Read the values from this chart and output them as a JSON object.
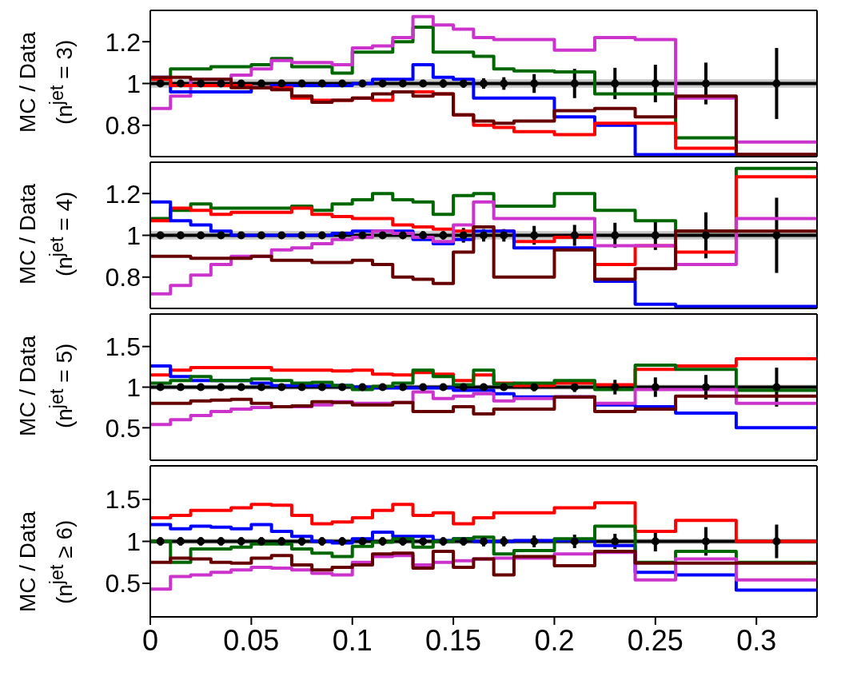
{
  "chart_data": [
    {
      "type": "histogram",
      "ylabel": "MC / Data\n(n$^{jet}$ = 3)",
      "bins": [
        0,
        0.01,
        0.02,
        0.03,
        0.04,
        0.05,
        0.06,
        0.07,
        0.08,
        0.09,
        0.1,
        0.11,
        0.12,
        0.13,
        0.14,
        0.15,
        0.16,
        0.17,
        0.18,
        0.2,
        0.22,
        0.24,
        0.26,
        0.29,
        0.33
      ],
      "xlim": [
        0,
        0.33
      ],
      "xticks": [
        0,
        0.05,
        0.1,
        0.15,
        0.2,
        0.25,
        0.3
      ],
      "ylim": [
        0.65,
        1.35
      ],
      "yticks": [
        0.8,
        1,
        1.2
      ],
      "tick_labels": "y",
      "ref_lines": [
        {
          "axis": "y",
          "value": 1,
          "color": "#000000"
        }
      ],
      "bands": [
        {
          "axis": "y",
          "from": 0.98,
          "to": 1.02,
          "color": "#c8c8c8"
        }
      ],
      "series": [
        {
          "color": "#006600",
          "values": [
            1.02,
            1.07,
            1.07,
            1.08,
            1.08,
            1.09,
            1.12,
            1.08,
            1.08,
            1.05,
            1.15,
            1.15,
            1.2,
            1.27,
            1.15,
            1.15,
            1.13,
            1.07,
            1.06,
            1.055,
            0.95,
            0.95,
            0.74,
            0.66
          ]
        },
        {
          "color": "#cc33cc",
          "values": [
            0.88,
            0.94,
            1.02,
            1.02,
            1.04,
            1.07,
            1.11,
            1.1,
            1.1,
            1.09,
            1.17,
            1.18,
            1.22,
            1.32,
            1.28,
            1.26,
            1.22,
            1.21,
            1.21,
            1.16,
            1.22,
            1.21,
            0.93,
            0.72
          ]
        },
        {
          "color": "#0000ff",
          "values": [
            1.03,
            0.96,
            0.96,
            0.96,
            0.96,
            0.98,
            0.99,
            0.99,
            0.99,
            0.99,
            1.0,
            1.02,
            1.02,
            1.09,
            1.03,
            1.02,
            0.93,
            0.93,
            0.93,
            0.84,
            0.8,
            0.66,
            0.66,
            0.66
          ]
        },
        {
          "color": "#ff0000",
          "values": [
            1.02,
            0.99,
            0.99,
            0.99,
            0.99,
            0.98,
            0.98,
            0.93,
            0.92,
            0.92,
            0.93,
            0.92,
            0.96,
            0.96,
            0.95,
            0.85,
            0.8,
            0.79,
            0.77,
            0.755,
            0.81,
            0.81,
            0.69,
            0.66
          ]
        },
        {
          "color": "#660000",
          "values": [
            1.03,
            1.03,
            1.02,
            1.02,
            0.98,
            0.98,
            0.97,
            0.94,
            0.91,
            0.92,
            0.93,
            0.95,
            0.96,
            0.94,
            0.95,
            0.85,
            0.82,
            0.81,
            0.82,
            0.87,
            0.88,
            0.84,
            0.94,
            0.66
          ]
        },
        {
          "type": "scatter",
          "marker": "circle",
          "color": "#000000",
          "x": [
            0.005,
            0.015,
            0.025,
            0.035,
            0.045,
            0.055,
            0.065,
            0.075,
            0.085,
            0.095,
            0.105,
            0.115,
            0.125,
            0.135,
            0.145,
            0.155,
            0.165,
            0.175,
            0.19,
            0.21,
            0.23,
            0.25,
            0.275,
            0.31
          ],
          "values": [
            1,
            1,
            1,
            1,
            1,
            1,
            1,
            1,
            1,
            1,
            1,
            1,
            1,
            1,
            1,
            1,
            1,
            1,
            1,
            1,
            1,
            1,
            1,
            1
          ],
          "errors": [
            0.01,
            0.01,
            0.01,
            0.01,
            0.01,
            0.01,
            0.01,
            0.01,
            0.01,
            0.01,
            0.01,
            0.01,
            0.01,
            0.015,
            0.02,
            0.02,
            0.025,
            0.03,
            0.045,
            0.07,
            0.075,
            0.09,
            0.1,
            0.17
          ]
        }
      ]
    },
    {
      "type": "histogram",
      "ylabel": "MC / Data\n(n$^{jet}$ = 4)",
      "bins": [
        0,
        0.01,
        0.02,
        0.03,
        0.04,
        0.05,
        0.06,
        0.07,
        0.08,
        0.09,
        0.1,
        0.11,
        0.12,
        0.13,
        0.14,
        0.15,
        0.16,
        0.17,
        0.18,
        0.2,
        0.22,
        0.24,
        0.26,
        0.29,
        0.33
      ],
      "xlim": [
        0,
        0.33
      ],
      "xticks": [
        0,
        0.05,
        0.1,
        0.15,
        0.2,
        0.25,
        0.3
      ],
      "ylim": [
        0.65,
        1.35
      ],
      "yticks": [
        0.8,
        1,
        1.2
      ],
      "tick_labels": "y",
      "ref_lines": [
        {
          "axis": "y",
          "value": 1,
          "color": "#000000"
        }
      ],
      "bands": [
        {
          "axis": "y",
          "from": 0.98,
          "to": 1.02,
          "color": "#c8c8c8"
        }
      ],
      "series": [
        {
          "color": "#006600",
          "values": [
            1.08,
            1.12,
            1.15,
            1.13,
            1.13,
            1.13,
            1.13,
            1.14,
            1.12,
            1.15,
            1.17,
            1.2,
            1.17,
            1.16,
            1.1,
            1.19,
            1.2,
            1.14,
            1.14,
            1.2,
            1.12,
            1.07,
            1.02,
            1.32
          ]
        },
        {
          "color": "#ff0000",
          "values": [
            1.07,
            1.13,
            1.12,
            1.1,
            1.11,
            1.11,
            1.11,
            1.13,
            1.1,
            1.09,
            1.08,
            1.08,
            1.05,
            1.04,
            1.03,
            1.02,
            1.04,
            1.02,
            0.97,
            0.99,
            0.86,
            0.95,
            0.92,
            1.28
          ]
        },
        {
          "color": "#0000ff",
          "values": [
            1.16,
            1.07,
            1.05,
            1.02,
            1.0,
            1.0,
            1.0,
            1.0,
            1.0,
            1.01,
            1.02,
            1.02,
            1.02,
            0.98,
            0.96,
            0.98,
            1.02,
            1.02,
            0.94,
            0.94,
            0.78,
            0.67,
            0.66,
            0.66
          ]
        },
        {
          "color": "#cc33cc",
          "values": [
            0.72,
            0.76,
            0.81,
            0.86,
            0.9,
            0.9,
            0.93,
            0.94,
            0.96,
            0.98,
            0.99,
            1.02,
            1.01,
            0.99,
            0.97,
            1.05,
            1.16,
            1.08,
            1.08,
            1.08,
            0.95,
            0.95,
            0.86,
            1.08
          ]
        },
        {
          "color": "#660000",
          "values": [
            0.9,
            0.9,
            0.89,
            0.89,
            0.89,
            0.9,
            0.88,
            0.88,
            0.87,
            0.87,
            0.88,
            0.86,
            0.8,
            0.79,
            0.77,
            0.92,
            1.04,
            0.8,
            0.8,
            0.93,
            0.79,
            0.84,
            1.02,
            1.02
          ]
        },
        {
          "type": "scatter",
          "marker": "circle",
          "color": "#000000",
          "x": [
            0.005,
            0.015,
            0.025,
            0.035,
            0.045,
            0.055,
            0.065,
            0.075,
            0.085,
            0.095,
            0.105,
            0.115,
            0.125,
            0.135,
            0.145,
            0.155,
            0.165,
            0.175,
            0.19,
            0.21,
            0.23,
            0.25,
            0.275,
            0.31
          ],
          "values": [
            1,
            1,
            1,
            1,
            1,
            1,
            1,
            1,
            1,
            1,
            1,
            1,
            1,
            1,
            1,
            1,
            1,
            1,
            1,
            1,
            1,
            1,
            1,
            1
          ],
          "errors": [
            0.01,
            0.01,
            0.01,
            0.01,
            0.01,
            0.01,
            0.01,
            0.01,
            0.01,
            0.01,
            0.01,
            0.01,
            0.01,
            0.02,
            0.02,
            0.035,
            0.03,
            0.03,
            0.045,
            0.05,
            0.06,
            0.07,
            0.11,
            0.18
          ]
        }
      ]
    },
    {
      "type": "histogram",
      "ylabel": "MC / Data\n(n$^{jet}$ = 5)",
      "bins": [
        0,
        0.01,
        0.02,
        0.03,
        0.04,
        0.05,
        0.06,
        0.07,
        0.08,
        0.09,
        0.1,
        0.11,
        0.12,
        0.13,
        0.14,
        0.15,
        0.16,
        0.17,
        0.18,
        0.2,
        0.22,
        0.24,
        0.26,
        0.29,
        0.33
      ],
      "xlim": [
        0,
        0.33
      ],
      "xticks": [
        0,
        0.05,
        0.1,
        0.15,
        0.2,
        0.25,
        0.3
      ],
      "ylim": [
        0.1,
        1.9
      ],
      "yticks": [
        0.5,
        1,
        1.5
      ],
      "tick_labels": "y",
      "ref_lines": [
        {
          "axis": "y",
          "value": 1,
          "color": "#000000"
        }
      ],
      "bands": [
        {
          "axis": "y",
          "from": 0.97,
          "to": 1.03,
          "color": "#c8c8c8"
        }
      ],
      "series": [
        {
          "color": "#ff0000",
          "values": [
            1.15,
            1.21,
            1.24,
            1.24,
            1.24,
            1.24,
            1.21,
            1.21,
            1.21,
            1.2,
            1.21,
            1.16,
            1.15,
            1.18,
            1.16,
            1.08,
            1.15,
            1.05,
            1.02,
            1.05,
            1.03,
            1.22,
            1.26,
            1.35
          ]
        },
        {
          "color": "#0000ff",
          "values": [
            1.26,
            1.13,
            1.08,
            1.08,
            1.08,
            1.05,
            1.02,
            1.02,
            1.02,
            1.02,
            1.0,
            0.99,
            0.99,
            0.99,
            0.99,
            0.96,
            0.96,
            0.92,
            0.88,
            0.88,
            0.78,
            0.76,
            0.68,
            0.5
          ]
        },
        {
          "color": "#006600",
          "values": [
            1.05,
            1.08,
            1.13,
            1.08,
            1.08,
            1.1,
            1.08,
            1.05,
            1.06,
            1.02,
            0.97,
            1.01,
            1.05,
            1.21,
            1.13,
            1.03,
            1.21,
            1.04,
            1.05,
            1.08,
            0.97,
            1.27,
            1.22,
            0.96
          ]
        },
        {
          "color": "#cc33cc",
          "values": [
            0.54,
            0.6,
            0.65,
            0.7,
            0.73,
            0.75,
            0.76,
            0.76,
            0.78,
            0.82,
            0.8,
            0.8,
            0.81,
            0.94,
            0.86,
            0.89,
            0.92,
            0.83,
            0.86,
            0.88,
            0.8,
            0.97,
            0.97,
            0.8
          ]
        },
        {
          "color": "#660000",
          "values": [
            0.8,
            0.8,
            0.83,
            0.84,
            0.85,
            0.8,
            0.76,
            0.77,
            0.82,
            0.81,
            0.78,
            0.78,
            0.81,
            0.7,
            0.7,
            0.76,
            0.67,
            0.73,
            0.73,
            0.88,
            0.7,
            0.73,
            0.89,
            0.89
          ]
        },
        {
          "type": "scatter",
          "marker": "circle",
          "color": "#000000",
          "x": [
            0.005,
            0.015,
            0.025,
            0.035,
            0.045,
            0.055,
            0.065,
            0.075,
            0.085,
            0.095,
            0.105,
            0.115,
            0.125,
            0.135,
            0.145,
            0.155,
            0.165,
            0.175,
            0.19,
            0.21,
            0.23,
            0.25,
            0.275,
            0.31
          ],
          "values": [
            1,
            1,
            1,
            1,
            1,
            1,
            1,
            1,
            1,
            1,
            1,
            1,
            1,
            1,
            1,
            1,
            1,
            1,
            1,
            1,
            1,
            1,
            1,
            1
          ],
          "errors": [
            0.02,
            0.02,
            0.02,
            0.02,
            0.02,
            0.02,
            0.02,
            0.02,
            0.02,
            0.02,
            0.02,
            0.02,
            0.02,
            0.02,
            0.03,
            0.03,
            0.04,
            0.04,
            0.05,
            0.06,
            0.09,
            0.12,
            0.15,
            0.24
          ]
        }
      ]
    },
    {
      "type": "histogram",
      "ylabel": "MC / Data\n(n$^{jet}$ ≥ 6)",
      "bins": [
        0,
        0.01,
        0.02,
        0.03,
        0.04,
        0.05,
        0.06,
        0.07,
        0.08,
        0.09,
        0.1,
        0.11,
        0.12,
        0.13,
        0.14,
        0.15,
        0.16,
        0.17,
        0.18,
        0.2,
        0.22,
        0.24,
        0.26,
        0.29,
        0.33
      ],
      "xlim": [
        0,
        0.33
      ],
      "xticks": [
        0,
        0.05,
        0.1,
        0.15,
        0.2,
        0.25,
        0.3
      ],
      "ylim": [
        0.1,
        1.9
      ],
      "yticks": [
        0.5,
        1,
        1.5
      ],
      "ref_lines": [
        {
          "axis": "y",
          "value": 1,
          "color": "#000000"
        }
      ],
      "bands": [
        {
          "axis": "y",
          "from": 0.97,
          "to": 1.03,
          "color": "#c8c8c8"
        }
      ],
      "series": [
        {
          "color": "#ff0000",
          "values": [
            1.28,
            1.31,
            1.37,
            1.37,
            1.4,
            1.44,
            1.43,
            1.31,
            1.21,
            1.23,
            1.28,
            1.37,
            1.44,
            1.31,
            1.34,
            1.21,
            1.28,
            1.34,
            1.34,
            1.4,
            1.46,
            1.12,
            1.25,
            1.0
          ]
        },
        {
          "color": "#0000ff",
          "values": [
            1.2,
            1.15,
            1.18,
            1.17,
            1.15,
            1.2,
            1.12,
            1.06,
            1.0,
            0.98,
            1.03,
            1.11,
            1.06,
            1.06,
            1.01,
            1.03,
            1.0,
            1.0,
            1.01,
            1.01,
            0.95,
            0.63,
            0.6,
            0.42
          ]
        },
        {
          "color": "#006600",
          "values": [
            1.0,
            0.75,
            0.91,
            0.91,
            0.93,
            0.97,
            0.97,
            0.91,
            0.86,
            0.82,
            0.94,
            0.99,
            1.03,
            0.93,
            1.0,
            1.03,
            1.05,
            0.85,
            0.89,
            1.03,
            1.18,
            0.75,
            0.88,
            0.75
          ]
        },
        {
          "color": "#cc33cc",
          "values": [
            0.43,
            0.58,
            0.6,
            0.63,
            0.66,
            0.69,
            0.68,
            0.66,
            0.62,
            0.6,
            0.75,
            0.82,
            0.83,
            0.72,
            0.75,
            0.77,
            0.79,
            0.8,
            0.8,
            0.85,
            0.87,
            0.54,
            0.79,
            0.54
          ]
        },
        {
          "color": "#660000",
          "values": [
            0.75,
            0.8,
            0.79,
            0.75,
            0.74,
            0.8,
            0.83,
            0.72,
            0.66,
            0.69,
            0.72,
            0.85,
            0.86,
            0.68,
            0.88,
            0.69,
            0.79,
            0.6,
            0.82,
            0.71,
            0.88,
            0.74,
            0.74,
            0.74
          ]
        },
        {
          "type": "scatter",
          "marker": "circle",
          "color": "#000000",
          "x": [
            0.005,
            0.015,
            0.025,
            0.035,
            0.045,
            0.055,
            0.065,
            0.075,
            0.085,
            0.095,
            0.105,
            0.115,
            0.125,
            0.135,
            0.145,
            0.155,
            0.165,
            0.175,
            0.19,
            0.21,
            0.23,
            0.25,
            0.275,
            0.31
          ],
          "values": [
            1,
            1,
            1,
            1,
            1,
            1,
            1,
            1,
            1,
            1,
            1,
            1,
            1,
            1,
            1,
            1,
            1,
            1,
            1,
            1,
            1,
            1,
            1,
            1
          ],
          "errors": [
            0.05,
            0.05,
            0.05,
            0.05,
            0.05,
            0.05,
            0.05,
            0.05,
            0.05,
            0.05,
            0.05,
            0.05,
            0.05,
            0.05,
            0.05,
            0.05,
            0.06,
            0.06,
            0.07,
            0.08,
            0.09,
            0.12,
            0.17,
            0.2
          ]
        }
      ]
    }
  ]
}
